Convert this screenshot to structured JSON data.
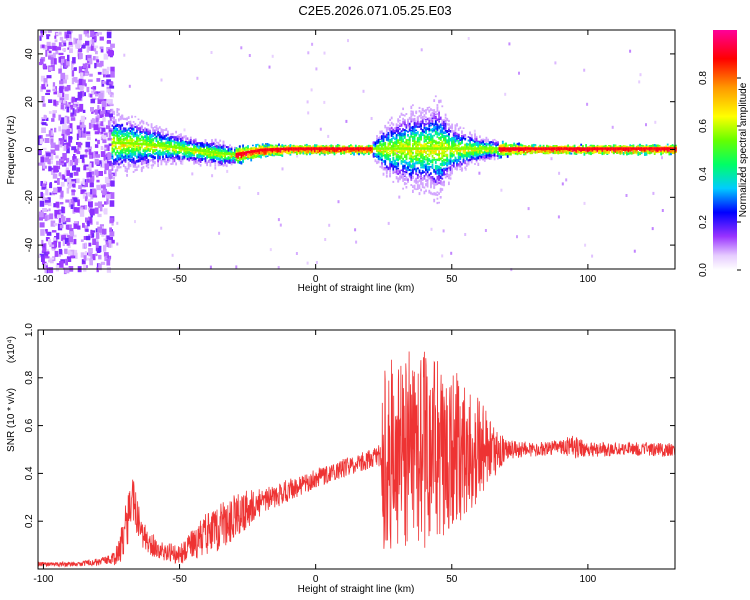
{
  "title": "C2E5.2026.071.05.25.E03",
  "chart_data": [
    {
      "type": "heatmap",
      "xlabel": "Height of straight line (km)",
      "ylabel": "Frequency (Hz)",
      "xlim": [
        -102,
        132
      ],
      "ylim": [
        -50,
        50
      ],
      "xticks": [
        -100,
        -50,
        0,
        50,
        100
      ],
      "yticks": [
        -40,
        -20,
        0,
        20,
        40
      ],
      "colorbar": {
        "label": "Normalized spectral amplitude",
        "ticks": [
          0.0,
          0.2,
          0.4,
          0.6,
          0.8
        ],
        "range": [
          0,
          1
        ]
      },
      "ridge": {
        "x": [
          -75,
          -65,
          -55,
          -45,
          -35,
          -30,
          -20,
          -10,
          0,
          10,
          20,
          25,
          30,
          35,
          40,
          45,
          50,
          60,
          70,
          80,
          100,
          132
        ],
        "y": [
          3,
          2.5,
          1.5,
          0,
          -1.5,
          -2,
          0,
          0.5,
          0.5,
          0.5,
          0.5,
          0.5,
          0.5,
          0.5,
          0.5,
          0.5,
          0.5,
          0.5,
          0.5,
          0.5,
          0.5,
          0.5
        ],
        "spread": [
          8,
          6,
          4,
          3,
          3,
          2,
          1.5,
          1,
          1,
          1,
          1,
          6,
          8,
          10,
          10,
          12,
          6,
          3,
          1.5,
          1,
          1,
          1
        ]
      },
      "noise_region": {
        "x_from": -102,
        "x_to": -75
      }
    },
    {
      "type": "line",
      "xlabel": "Height of straight line (km)",
      "ylabel": "SNR (10 * v/v)",
      "y_multiplier": "(x10⁴)",
      "xlim": [
        -102,
        132
      ],
      "ylim": [
        0,
        1.0
      ],
      "xticks": [
        -100,
        -50,
        0,
        50,
        100
      ],
      "yticks": [
        0.2,
        0.4,
        0.6,
        0.8,
        1.0
      ],
      "series": [
        {
          "color": "#ee3333",
          "x": [
            -102,
            -90,
            -80,
            -75,
            -72,
            -69,
            -67,
            -64,
            -60,
            -55,
            -50,
            -45,
            -40,
            -35,
            -30,
            -25,
            -20,
            -15,
            -10,
            -5,
            0,
            5,
            10,
            15,
            20,
            24,
            25,
            30,
            35,
            40,
            45,
            50,
            55,
            60,
            65,
            70,
            80,
            90,
            95,
            100,
            110,
            120,
            132
          ],
          "y": [
            0.02,
            0.02,
            0.03,
            0.04,
            0.07,
            0.22,
            0.28,
            0.15,
            0.1,
            0.07,
            0.06,
            0.1,
            0.15,
            0.18,
            0.22,
            0.25,
            0.28,
            0.3,
            0.33,
            0.35,
            0.38,
            0.4,
            0.42,
            0.44,
            0.46,
            0.47,
            0.5,
            0.5,
            0.5,
            0.5,
            0.5,
            0.5,
            0.5,
            0.5,
            0.49,
            0.5,
            0.5,
            0.51,
            0.52,
            0.5,
            0.5,
            0.5,
            0.5
          ],
          "amp": [
            0.01,
            0.01,
            0.015,
            0.02,
            0.06,
            0.12,
            0.1,
            0.06,
            0.05,
            0.04,
            0.04,
            0.07,
            0.09,
            0.1,
            0.1,
            0.08,
            0.06,
            0.05,
            0.05,
            0.04,
            0.04,
            0.04,
            0.04,
            0.04,
            0.04,
            0.06,
            0.45,
            0.4,
            0.42,
            0.42,
            0.38,
            0.35,
            0.28,
            0.22,
            0.12,
            0.04,
            0.03,
            0.03,
            0.06,
            0.03,
            0.03,
            0.03,
            0.03
          ]
        }
      ]
    }
  ]
}
